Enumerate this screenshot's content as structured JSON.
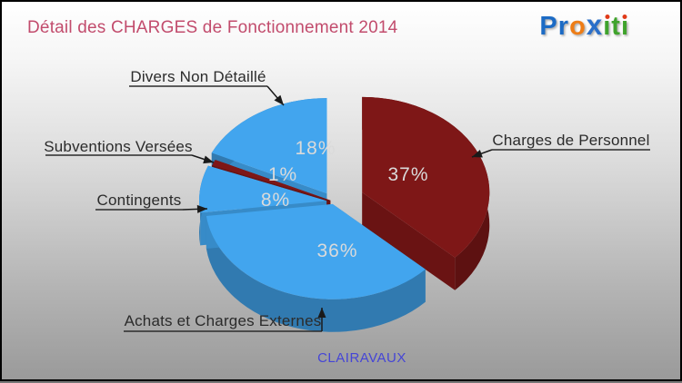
{
  "title": {
    "text": "Détail des CHARGES de Fonctionnement 2014",
    "color": "#c24c6d"
  },
  "logo": {
    "name": "proxiti",
    "letters": [
      {
        "ch": "P",
        "color": "#1c6bc5"
      },
      {
        "ch": "r",
        "color": "#1c6bc5"
      },
      {
        "ch": "o",
        "color": "#ee7d16"
      },
      {
        "ch": "x",
        "color": "#2a6fc9"
      },
      {
        "ch": "i",
        "color": "#3fa32c",
        "dot": "#e03b1a"
      },
      {
        "ch": "t",
        "color": "#3fa32c"
      },
      {
        "ch": "i",
        "color": "#3fa32c",
        "dot": "#e03b1a"
      }
    ]
  },
  "footer": {
    "commune": "CLAIRAVAUX",
    "color": "#4545d6"
  },
  "chart_data": {
    "type": "pie",
    "style": "3d-exploded",
    "title": "Détail des CHARGES de Fonctionnement 2014",
    "unit": "%",
    "direction": "clockwise",
    "start_angle_deg": 0,
    "value_labels_color": "#dadada",
    "callout_text_color": "#2b2b2b",
    "slices": [
      {
        "label": "Charges de Personnel",
        "value": 37,
        "color": "#7e1717"
      },
      {
        "label": "Achats et Charges Externes",
        "value": 36,
        "color": "#42a5ee"
      },
      {
        "label": "Contingents",
        "value": 8,
        "color": "#42a5ee"
      },
      {
        "label": "Subventions Versées",
        "value": 1,
        "color": "#7e1717"
      },
      {
        "label": "Divers Non Détaillé",
        "value": 18,
        "color": "#42a5ee"
      }
    ]
  }
}
